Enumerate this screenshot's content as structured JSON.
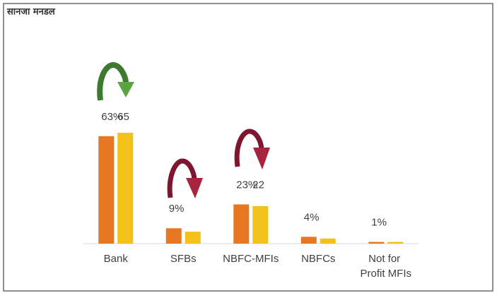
{
  "chart_data": {
    "type": "bar",
    "title": "सानजा मनडल",
    "categories": [
      "Bank",
      "SFBs",
      "NBFC-MFIs",
      "NBFCs",
      "Not for Profit MFIs"
    ],
    "series": [
      {
        "color": "#e87722",
        "values": [
          63,
          9,
          23,
          4,
          1
        ],
        "value_labels": [
          "63%",
          "9%",
          "23%",
          "4%",
          "1%"
        ]
      },
      {
        "color": "#f2c21b",
        "values": [
          65,
          7,
          22,
          3,
          1
        ],
        "value_labels": [
          "65",
          null,
          "22",
          null,
          null
        ]
      }
    ]
  }
}
